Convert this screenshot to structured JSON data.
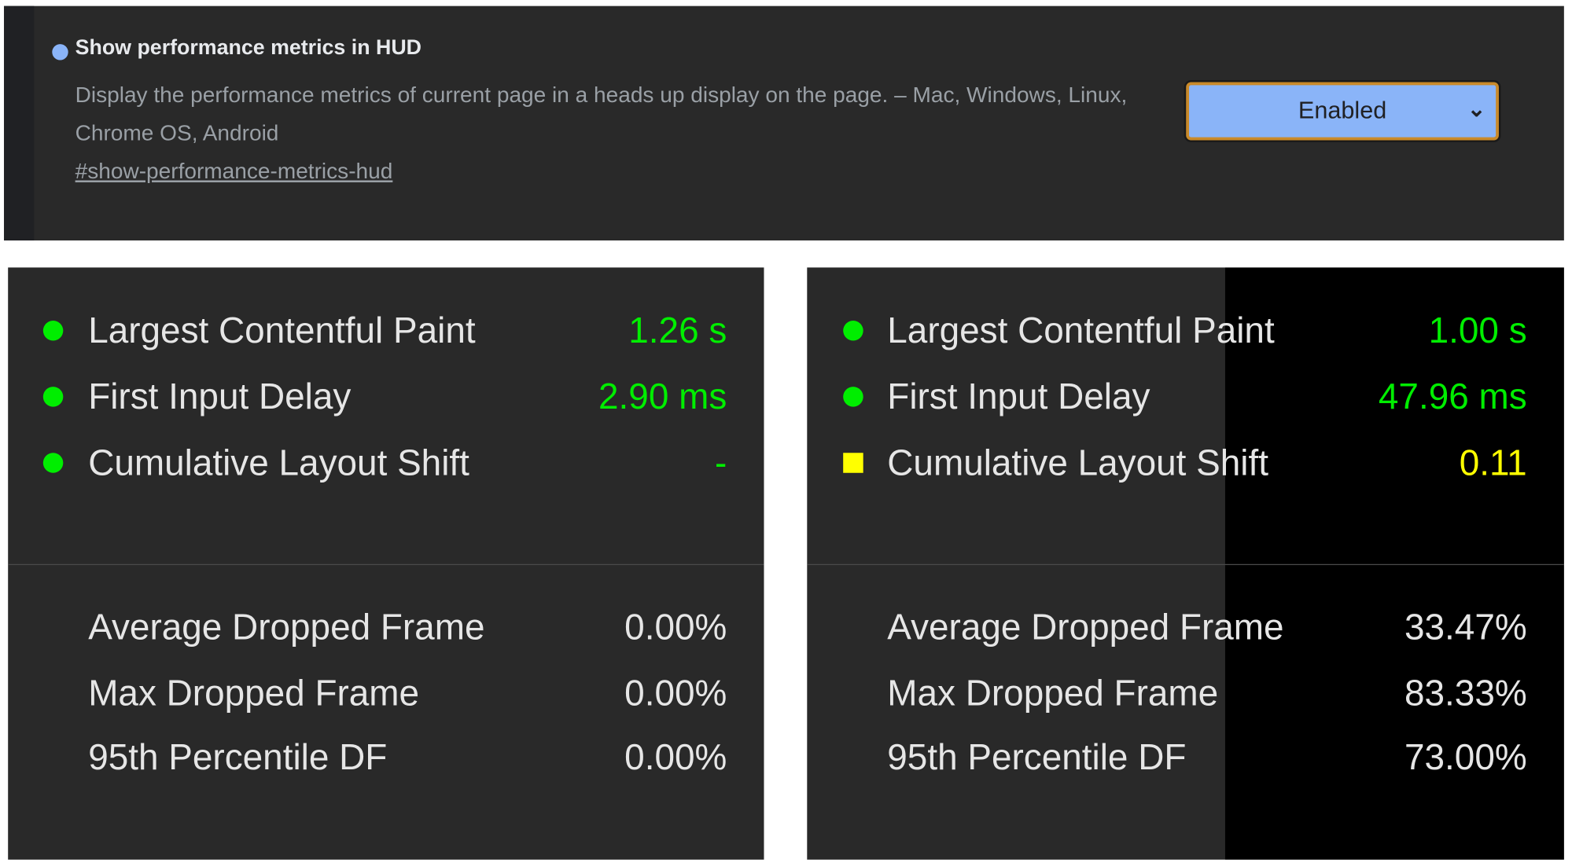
{
  "flag": {
    "title": "Show performance metrics in HUD",
    "description": "Display the performance metrics of current page in a heads up display on the page. – Mac, Windows, Linux, Chrome OS, Android",
    "link": "#show-performance-metrics-hud",
    "select_value": "Enabled",
    "accent_color": "#8ab4f8"
  },
  "hud_left": {
    "web_vitals": [
      {
        "label": "Largest Contentful Paint",
        "value": "1.26 s",
        "indicator": "circle",
        "color": "#00ee00"
      },
      {
        "label": "First Input Delay",
        "value": "2.90 ms",
        "indicator": "circle",
        "color": "#00ee00"
      },
      {
        "label": "Cumulative Layout Shift",
        "value": "-",
        "indicator": "circle",
        "color": "#00ee00"
      }
    ],
    "frames": [
      {
        "label": "Average Dropped Frame",
        "value": "0.00%"
      },
      {
        "label": "Max Dropped Frame",
        "value": "0.00%"
      },
      {
        "label": "95th Percentile DF",
        "value": "0.00%"
      }
    ]
  },
  "hud_right": {
    "web_vitals": [
      {
        "label": "Largest Contentful Paint",
        "value": "1.00 s",
        "indicator": "circle",
        "color": "#00ee00"
      },
      {
        "label": "First Input Delay",
        "value": "47.96 ms",
        "indicator": "circle",
        "color": "#00ee00"
      },
      {
        "label": "Cumulative Layout Shift",
        "value": "0.11",
        "indicator": "square",
        "color": "#ffff00"
      }
    ],
    "frames": [
      {
        "label": "Average Dropped Frame",
        "value": "33.47%"
      },
      {
        "label": "Max Dropped Frame",
        "value": "83.33%"
      },
      {
        "label": "95th Percentile DF",
        "value": "73.00%"
      }
    ]
  }
}
